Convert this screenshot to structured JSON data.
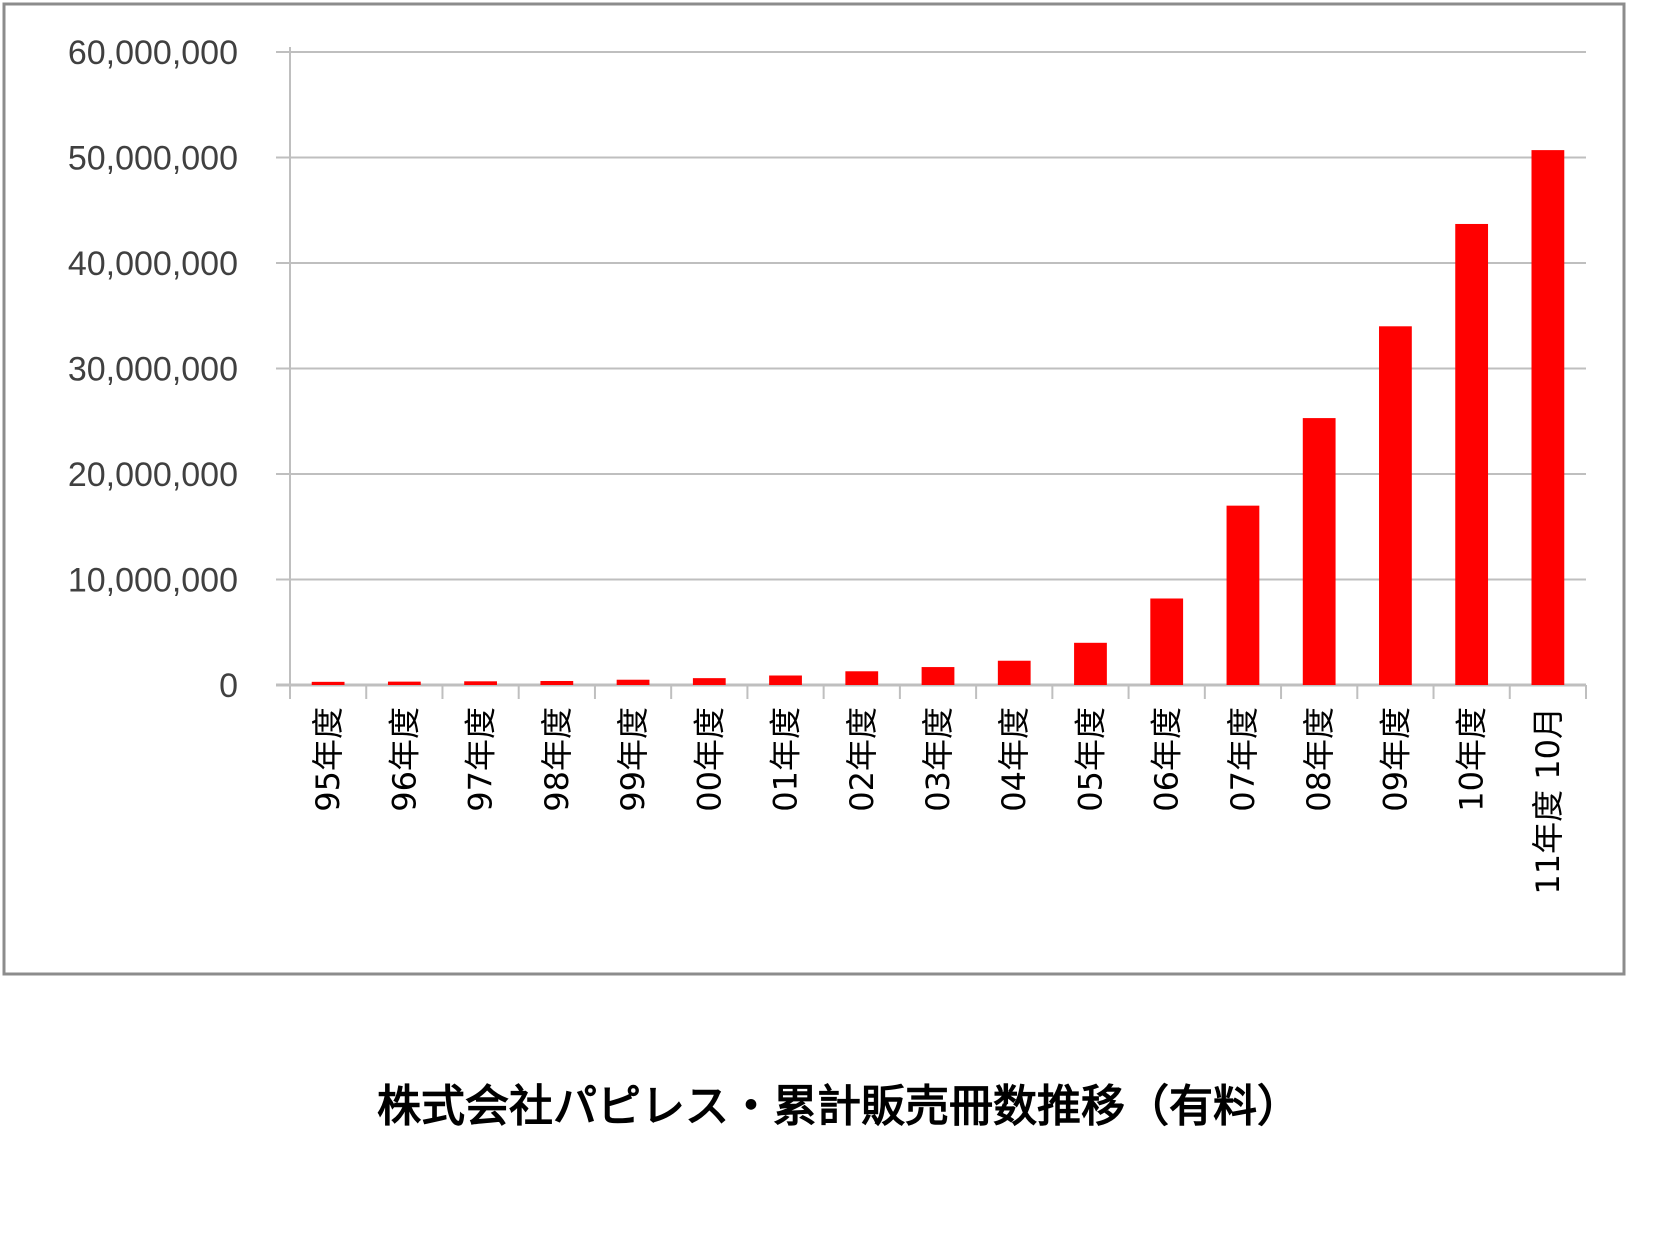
{
  "chart_data": {
    "type": "bar",
    "categories": [
      "95年度",
      "96年度",
      "97年度",
      "98年度",
      "99年度",
      "00年度",
      "01年度",
      "02年度",
      "03年度",
      "04年度",
      "05年度",
      "06年度",
      "07年度",
      "08年度",
      "09年度",
      "10年度",
      "11年度 10月"
    ],
    "values": [
      300000,
      320000,
      350000,
      380000,
      500000,
      650000,
      900000,
      1300000,
      1700000,
      2300000,
      4000000,
      8200000,
      17000000,
      25300000,
      34000000,
      43700000,
      50700000
    ],
    "ylim": [
      0,
      60000000
    ],
    "yticks": [
      "0",
      "10,000,000",
      "20,000,000",
      "30,000,000",
      "40,000,000",
      "50,000,000",
      "60,000,000"
    ],
    "grid": true,
    "bar_color": "#ff0000",
    "caption": "株式会社パピレス・累計販売冊数推移（有料）"
  }
}
